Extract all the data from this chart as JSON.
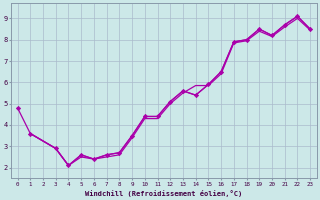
{
  "xlabel": "Windchill (Refroidissement éolien,°C)",
  "background_color": "#cce8e8",
  "grid_color": "#aabbcc",
  "line_color": "#aa00aa",
  "xlim": [
    -0.5,
    23.5
  ],
  "ylim": [
    1.5,
    9.7
  ],
  "xticks": [
    0,
    1,
    2,
    3,
    4,
    5,
    6,
    7,
    8,
    9,
    10,
    11,
    12,
    13,
    14,
    15,
    16,
    17,
    18,
    19,
    20,
    21,
    22,
    23
  ],
  "yticks": [
    2,
    3,
    4,
    5,
    6,
    7,
    8,
    9
  ],
  "line1_x": [
    0,
    1,
    3,
    4,
    5,
    6,
    7,
    8,
    9,
    10,
    11,
    12,
    13,
    14,
    15,
    16,
    17,
    18,
    19,
    20,
    21,
    22,
    23
  ],
  "line1_y": [
    4.8,
    3.6,
    2.9,
    2.1,
    2.6,
    2.4,
    2.6,
    2.7,
    3.5,
    4.4,
    4.4,
    5.1,
    5.6,
    5.4,
    5.9,
    6.5,
    7.9,
    8.0,
    8.5,
    8.2,
    8.7,
    9.1,
    8.5
  ],
  "line2_x": [
    1,
    3,
    4,
    5,
    6,
    7,
    8,
    9,
    10,
    11,
    12,
    13,
    14,
    15,
    16,
    17,
    18,
    19,
    20,
    21,
    22,
    23
  ],
  "line2_y": [
    3.6,
    2.9,
    2.1,
    2.6,
    2.4,
    2.6,
    2.7,
    3.5,
    4.4,
    4.4,
    5.1,
    5.6,
    5.4,
    5.9,
    6.5,
    7.9,
    8.0,
    8.5,
    8.2,
    8.7,
    9.1,
    8.5
  ],
  "line3_x": [
    1,
    3,
    4,
    5,
    6,
    7,
    8,
    9,
    10,
    11,
    12,
    13,
    14,
    15,
    16,
    17,
    18,
    19,
    20,
    21,
    22,
    23
  ],
  "line3_y": [
    3.6,
    2.9,
    2.1,
    2.5,
    2.4,
    2.5,
    2.6,
    3.4,
    4.3,
    4.3,
    5.0,
    5.5,
    5.85,
    5.85,
    6.4,
    7.85,
    7.95,
    8.4,
    8.15,
    8.6,
    9.0,
    8.45
  ]
}
